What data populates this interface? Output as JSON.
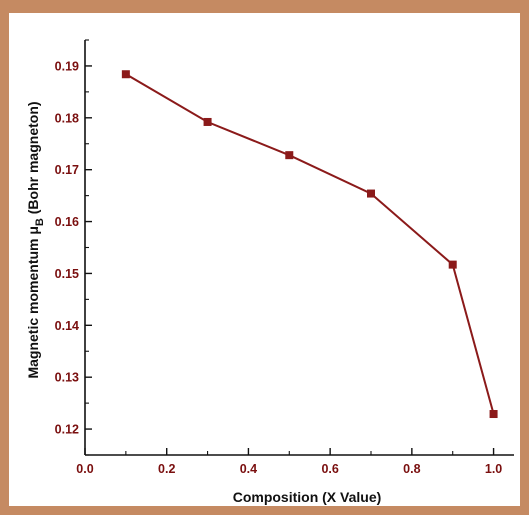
{
  "chart_data": {
    "type": "line",
    "title": "",
    "xlabel": "Composition (X Value)",
    "ylabel_main": "Magnetic momentum μ",
    "ylabel_sub": "B",
    "ylabel_tail": " (Bohr magneton)",
    "xlim": [
      0.0,
      1.05
    ],
    "ylim": [
      0.115,
      0.195
    ],
    "xticks": [
      0.0,
      0.2,
      0.4,
      0.6,
      0.8,
      1.0
    ],
    "xtick_labels": [
      "0.0",
      "0.2",
      "0.4",
      "0.6",
      "0.8",
      "1.0"
    ],
    "yticks": [
      0.12,
      0.13,
      0.14,
      0.15,
      0.16,
      0.17,
      0.18,
      0.19
    ],
    "ytick_labels": [
      "0.12",
      "0.13",
      "0.14",
      "0.15",
      "0.16",
      "0.17",
      "0.18",
      "0.19"
    ],
    "grid": false,
    "series": [
      {
        "x": [
          0.1,
          0.3,
          0.5,
          0.7,
          0.9,
          1.0
        ],
        "y": [
          0.1884,
          0.1792,
          0.1728,
          0.1654,
          0.1517,
          0.1229
        ],
        "color": "#8b1a1a",
        "marker": "square"
      }
    ],
    "colors": {
      "frame": "#c58a62",
      "tick_text": "#7a0f0f",
      "axis": "#111111"
    }
  }
}
